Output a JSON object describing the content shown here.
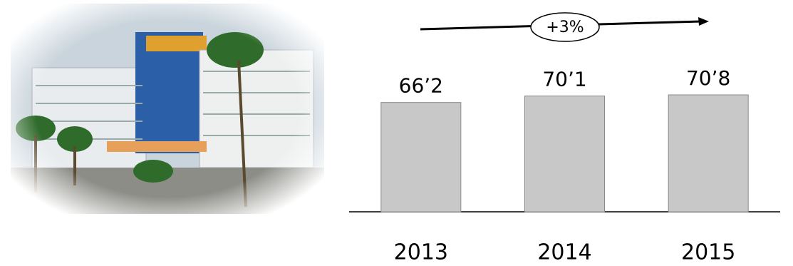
{
  "chart_data": {
    "type": "bar",
    "annotation": "+3%",
    "categories": [
      "2013",
      "2014",
      "2015"
    ],
    "values": [
      66.2,
      70.1,
      70.8
    ],
    "value_labels": [
      "66’2",
      "70’1",
      "70’8"
    ],
    "color": "#c8c8c8"
  }
}
